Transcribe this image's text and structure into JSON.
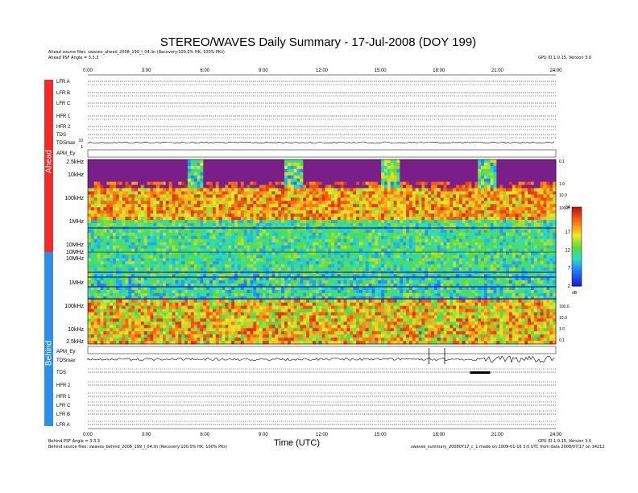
{
  "title": "STEREO/WAVES Daily Summary - 17-Jul-2008 (DOY 199)",
  "header_left_1": "Ahead source files: swaves_ahead_2008_199_l_04.lin (Recovery:100.0% HK, 100% PKs)",
  "header_left_2": "Ahead PSF Angle = 3.3.3",
  "header_right": "GPU ID 1.0.15, Version 3.0",
  "footer_left_1": "Behind PSF Angle = 3.3.3",
  "footer_left_2": "Behind source files: swaves_behind_2008_199_l_04.lin (Recovery:100.0% HK, 100% PKs)",
  "footer_right_1": "GPU ID 1.0.15, Version 3.0",
  "footer_right_2": "swaves_summary_20080717_c_1 made on 2009-01-16 3:0 UTC from data 2008/07/17 on 14212",
  "side_labels": {
    "ahead": "Ahead",
    "behind": "Behind"
  },
  "xlabel": "Time (UTC)",
  "colorbar_unit": "dB",
  "colors": {
    "ahead": "#ef2b2b",
    "behind": "#2f8fe8",
    "background_fill": "#7a1f8a"
  },
  "chart_data": {
    "type": "heatmap",
    "title": "STEREO/WAVES Daily Summary - 17-Jul-2008 (DOY 199)",
    "xlabel": "Time (UTC)",
    "x_ticks": [
      "0:00",
      "3:00",
      "6:00",
      "9:00",
      "12:00",
      "15:00",
      "18:00",
      "21:00",
      "24:00"
    ],
    "xlim": [
      0,
      24
    ],
    "colorbar": {
      "ticks": [
        2,
        7,
        12,
        17,
        24
      ],
      "unit": "dB",
      "range": [
        2,
        24
      ]
    },
    "ahead_rows": [
      "LFR A",
      "LFR B",
      "LFR C",
      "HFR 1",
      "HFR 2",
      "TDS",
      "TDSmax",
      "APM_Ey"
    ],
    "ahead_spectrogram_ticks": [
      "2.5kHz",
      "10kHz",
      "100kHz",
      "1MHz",
      "10MHz"
    ],
    "shared_ticks": [
      "10MHz",
      "10MHz"
    ],
    "behind_spectrogram_ticks": [
      "1MHz",
      "100kHz",
      "10kHz",
      "2.5kHz"
    ],
    "behind_rows": [
      "APM_Ey",
      "TDSmax",
      "TDS",
      "HFR 2",
      "HFR 1",
      "LFR C",
      "LFR B",
      "LFR A"
    ],
    "right_ticks_ahead": [
      "0.1",
      "1.0",
      "10.0",
      "100.0"
    ],
    "right_ticks_behind": [
      "100.0",
      "10.0",
      "1.0",
      "0.1"
    ],
    "tds_ticks": [
      "10",
      "1"
    ],
    "ahead_dropouts_hours": [
      [
        5.0,
        5.9
      ],
      [
        10.0,
        10.9
      ],
      [
        15.0,
        15.9
      ],
      [
        20.0,
        20.9
      ]
    ],
    "behind_markers_hours": [
      17.5,
      18.3
    ]
  }
}
